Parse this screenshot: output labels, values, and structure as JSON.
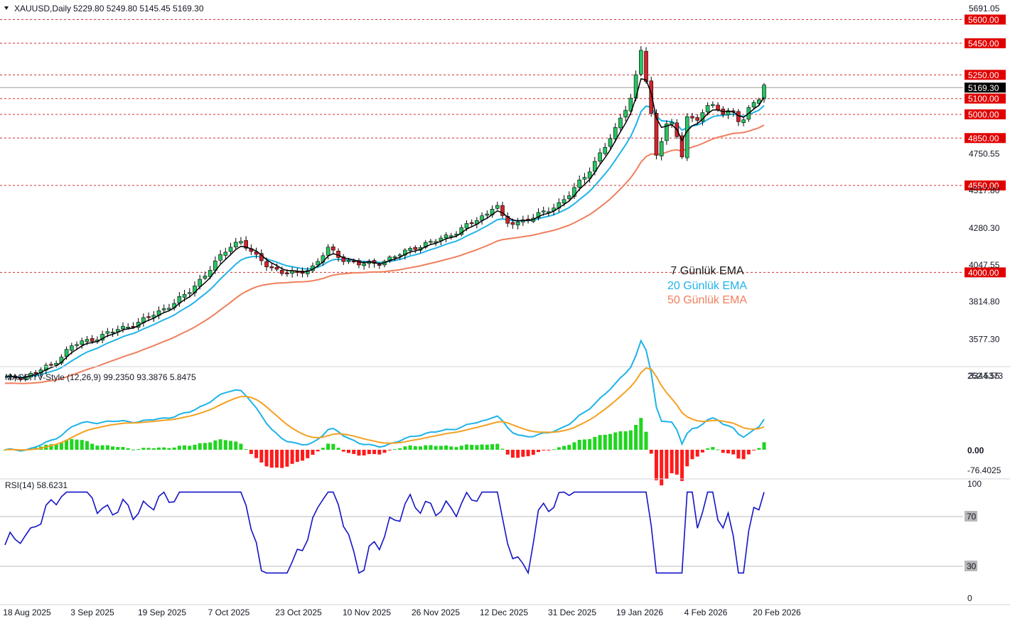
{
  "header": {
    "symbol": "XAUUSD,Daily",
    "ohlc": "5229.80 5249.80 5145.45 5169.30"
  },
  "legend": {
    "ema7": "7 Günlük EMA",
    "ema20": "20 Günlük EMA",
    "ema50": "50 Günlük EMA"
  },
  "macd": {
    "title": "MACD TV-Style (12,26,9) 99.2350 93.3876 5.8475"
  },
  "rsi": {
    "title": "RSI(14) 58.6231"
  },
  "colors": {
    "up": "#26c463",
    "down": "#d3222b",
    "ema7": "#000000",
    "ema20": "#1fb3e8",
    "ema50": "#f07f5d",
    "macd": "#1fb3e8",
    "signal": "#f5a020",
    "hist_up": "#1fd61f",
    "hist_down": "#ff1a1a",
    "rsi": "#1414c8",
    "level": "#d32f2f"
  },
  "chart_data": [
    {
      "type": "candlestick",
      "price_axis_ticks": [
        "5691.05",
        "4750.55",
        "4517.80",
        "4280.30",
        "4047.55",
        "3814.80",
        "3577.30",
        "3344.55"
      ],
      "levels": [
        "5600.00",
        "5450.00",
        "5250.00",
        "5100.00",
        "5000.00",
        "4850.00",
        "4550.00",
        "4000.00"
      ],
      "current_price": "5169.30",
      "x_ticks": [
        "18 Aug 2025",
        "3 Sep 2025",
        "19 Sep 2025",
        "7 Oct 2025",
        "23 Oct 2025",
        "10 Nov 2025",
        "26 Nov 2025",
        "12 Dec 2025",
        "31 Dec 2025",
        "19 Jan 2026",
        "4 Feb 2026",
        "20 Feb 2026"
      ],
      "ylim": [
        3300,
        5720
      ],
      "series": [
        {
          "name": "7 Günlük EMA"
        },
        {
          "name": "20 Günlük EMA"
        },
        {
          "name": "50 Günlük EMA"
        }
      ]
    },
    {
      "type": "line",
      "title": "MACD TV-Style (12,26,9) 99.2350 93.3876 5.8475",
      "axis_ticks": [
        "252.5373",
        "0.00",
        "-76.4025"
      ],
      "values": {
        "macd": 99.235,
        "signal": 93.3876,
        "histogram": 5.8475
      }
    },
    {
      "type": "line",
      "title": "RSI(14) 58.6231",
      "axis_ticks": [
        "100",
        "70",
        "30",
        "0"
      ],
      "levels": [
        70,
        30
      ],
      "value": 58.6231
    }
  ]
}
